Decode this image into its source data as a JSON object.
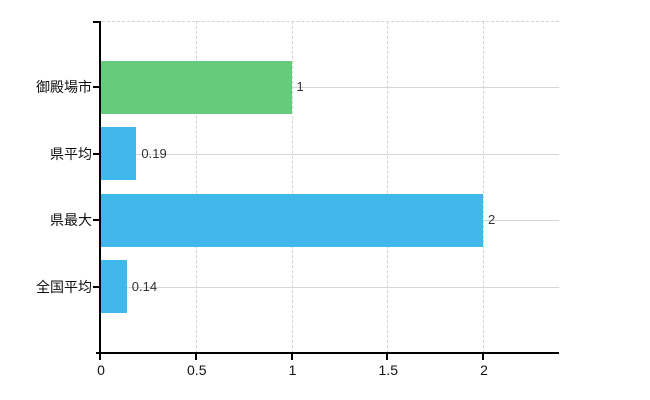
{
  "chart_data": {
    "type": "bar",
    "orientation": "horizontal",
    "title": "",
    "xlabel": "",
    "ylabel": "",
    "categories": [
      "御殿場市",
      "県平均",
      "県最大",
      "全国平均"
    ],
    "values": [
      1,
      0.19,
      2,
      0.14
    ],
    "value_labels": [
      "1",
      "0.19",
      "2",
      "0.14"
    ],
    "bar_colors": [
      "#66cb7d",
      "#41b8ec",
      "#41b8ec",
      "#41b8ec"
    ],
    "x_ticks": [
      0,
      0.5,
      1,
      1.5,
      2
    ],
    "x_tick_labels": [
      "0",
      "0.5",
      "1",
      "1.5",
      "2"
    ],
    "xlim": [
      0,
      2.4
    ],
    "grid": true,
    "grid_style": "vertical-dashed, horizontal-solid-at-category-centers",
    "legend_position": "none"
  },
  "style": {
    "background": "#ffffff",
    "axis_color": "#000000",
    "solid_grid_color": "#d6d6d6",
    "dashed_grid_color": "#d2d2d2",
    "category_label_color": "#111111",
    "value_label_color": "#333333",
    "bar_green": "#66cb7d",
    "bar_blue": "#41b8ec"
  }
}
